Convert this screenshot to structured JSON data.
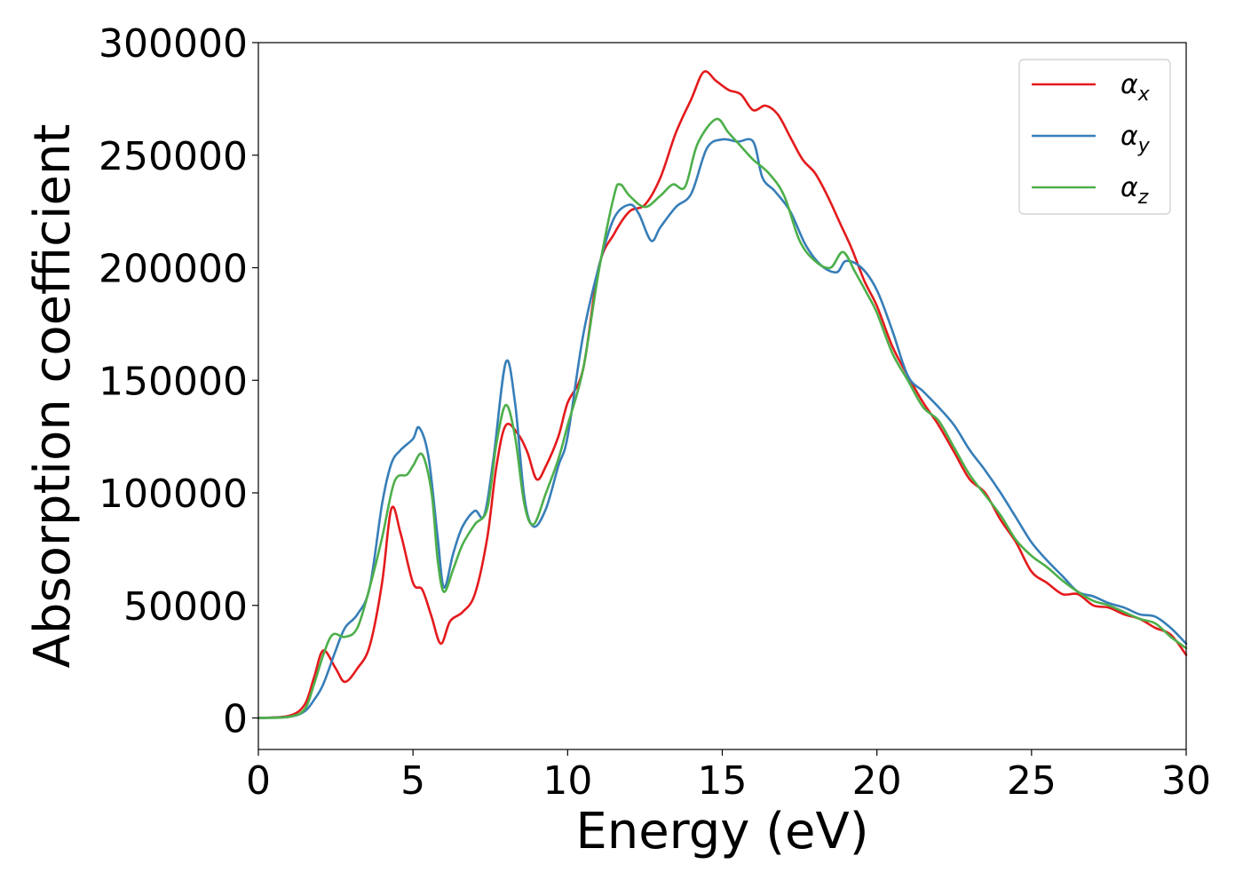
{
  "chart_data": {
    "type": "line",
    "xlabel": "Energy (eV)",
    "ylabel": "Absorption coefficient",
    "xlim": [
      0,
      30
    ],
    "ylim": [
      -14000,
      300000
    ],
    "xticks": [
      "0",
      "5",
      "10",
      "15",
      "20",
      "25",
      "30"
    ],
    "xtick_values": [
      0,
      5,
      10,
      15,
      20,
      25,
      30
    ],
    "yticks": [
      "0",
      "50000",
      "100000",
      "150000",
      "200000",
      "250000",
      "300000"
    ],
    "ytick_values": [
      0,
      50000,
      100000,
      150000,
      200000,
      250000,
      300000
    ],
    "grid": false,
    "legend_position": "top-right",
    "series": [
      {
        "name": "α",
        "subscript": "x",
        "color": "#e41a1c",
        "x": [
          0,
          1,
          1.5,
          1.8,
          2.1,
          2.5,
          2.8,
          3.2,
          3.6,
          4.0,
          4.3,
          4.6,
          5.0,
          5.3,
          5.6,
          5.9,
          6.2,
          6.6,
          7.0,
          7.4,
          7.7,
          8.0,
          8.4,
          8.7,
          9.0,
          9.3,
          9.7,
          10.0,
          10.5,
          11.0,
          11.5,
          12.0,
          12.5,
          13.0,
          13.5,
          14.0,
          14.4,
          14.8,
          15.2,
          15.6,
          16.0,
          16.4,
          16.8,
          17.2,
          17.6,
          18.0,
          18.4,
          18.8,
          19.2,
          19.6,
          20.0,
          20.5,
          21.0,
          21.5,
          22.0,
          22.5,
          23.0,
          23.5,
          24.0,
          24.5,
          25.0,
          25.5,
          26.0,
          26.5,
          27.0,
          27.5,
          28.0,
          28.5,
          29.0,
          29.5,
          30.0
        ],
        "y": [
          0,
          1000,
          6000,
          18000,
          30000,
          22000,
          16000,
          22000,
          32000,
          60000,
          93000,
          82000,
          60000,
          57000,
          45000,
          33000,
          43000,
          47000,
          55000,
          80000,
          112000,
          130000,
          126000,
          118000,
          106000,
          112000,
          125000,
          140000,
          155000,
          200000,
          215000,
          225000,
          228000,
          240000,
          260000,
          275000,
          287000,
          283000,
          279000,
          277000,
          270000,
          272000,
          268000,
          258000,
          248000,
          242000,
          232000,
          220000,
          208000,
          194000,
          183000,
          165000,
          152000,
          140000,
          130000,
          118000,
          106000,
          100000,
          88000,
          78000,
          65000,
          60000,
          55000,
          55000,
          50000,
          49000,
          46000,
          44000,
          40000,
          37000,
          28000
        ]
      },
      {
        "name": "α",
        "subscript": "y",
        "color": "#377eb8",
        "x": [
          0,
          1,
          1.5,
          1.8,
          2.1,
          2.5,
          2.8,
          3.2,
          3.6,
          4.0,
          4.3,
          4.6,
          5.0,
          5.2,
          5.5,
          5.8,
          6.0,
          6.3,
          6.6,
          7.0,
          7.3,
          7.6,
          8.0,
          8.3,
          8.6,
          8.9,
          9.3,
          9.7,
          10.0,
          10.5,
          11.0,
          11.5,
          12.0,
          12.3,
          12.7,
          13.0,
          13.5,
          14.0,
          14.5,
          15.0,
          15.5,
          16.0,
          16.3,
          16.7,
          17.2,
          17.7,
          18.2,
          18.7,
          19.0,
          19.5,
          20.0,
          20.5,
          21.0,
          21.5,
          22.0,
          22.5,
          23.0,
          23.5,
          24.0,
          24.5,
          25.0,
          25.5,
          26.0,
          26.5,
          27.0,
          27.5,
          28.0,
          28.5,
          29.0,
          29.5,
          30.0
        ],
        "y": [
          0,
          500,
          3000,
          8000,
          15000,
          30000,
          40000,
          46000,
          58000,
          95000,
          113000,
          119000,
          124000,
          129000,
          116000,
          80000,
          58000,
          73000,
          85000,
          92000,
          90000,
          115000,
          158000,
          140000,
          98000,
          85000,
          93000,
          112000,
          125000,
          170000,
          200000,
          222000,
          228000,
          224000,
          212000,
          218000,
          227000,
          233000,
          253000,
          257000,
          256000,
          256000,
          240000,
          234000,
          225000,
          210000,
          201000,
          198000,
          203000,
          200000,
          190000,
          172000,
          152000,
          145000,
          138000,
          130000,
          119000,
          110000,
          100000,
          89000,
          78000,
          70000,
          63000,
          56000,
          54000,
          51000,
          49000,
          46000,
          45000,
          40000,
          33000
        ]
      },
      {
        "name": "α",
        "subscript": "z",
        "color": "#4daf4a",
        "x": [
          0,
          1,
          1.5,
          1.8,
          2.1,
          2.4,
          2.8,
          3.2,
          3.6,
          4.0,
          4.4,
          4.8,
          5.0,
          5.3,
          5.6,
          5.8,
          6.0,
          6.3,
          6.6,
          7.0,
          7.4,
          7.7,
          8.0,
          8.3,
          8.6,
          8.9,
          9.3,
          9.7,
          10.0,
          10.5,
          11.0,
          11.5,
          11.7,
          12.0,
          12.5,
          13.0,
          13.4,
          13.8,
          14.2,
          14.8,
          15.2,
          15.6,
          16.0,
          16.5,
          17.0,
          17.5,
          18.0,
          18.5,
          18.9,
          19.3,
          19.7,
          20.0,
          20.5,
          21.0,
          21.5,
          22.0,
          22.5,
          23.0,
          23.5,
          24.0,
          24.5,
          25.0,
          25.5,
          26.0,
          26.5,
          27.0,
          27.5,
          28.0,
          28.5,
          29.0,
          29.5,
          30.0
        ],
        "y": [
          0,
          500,
          4000,
          15000,
          28000,
          37000,
          36000,
          40000,
          58000,
          80000,
          105000,
          108000,
          112000,
          117000,
          100000,
          70000,
          56000,
          66000,
          77000,
          86000,
          93000,
          122000,
          139000,
          125000,
          95000,
          86000,
          100000,
          115000,
          130000,
          155000,
          198000,
          232000,
          237000,
          232000,
          227000,
          232000,
          237000,
          236000,
          255000,
          266000,
          260000,
          254000,
          248000,
          242000,
          232000,
          212000,
          203000,
          200000,
          207000,
          198000,
          188000,
          180000,
          162000,
          150000,
          138000,
          132000,
          120000,
          108000,
          99000,
          90000,
          79000,
          72000,
          67000,
          61000,
          56000,
          52000,
          50000,
          47000,
          44000,
          42000,
          36000,
          31000
        ]
      }
    ]
  }
}
